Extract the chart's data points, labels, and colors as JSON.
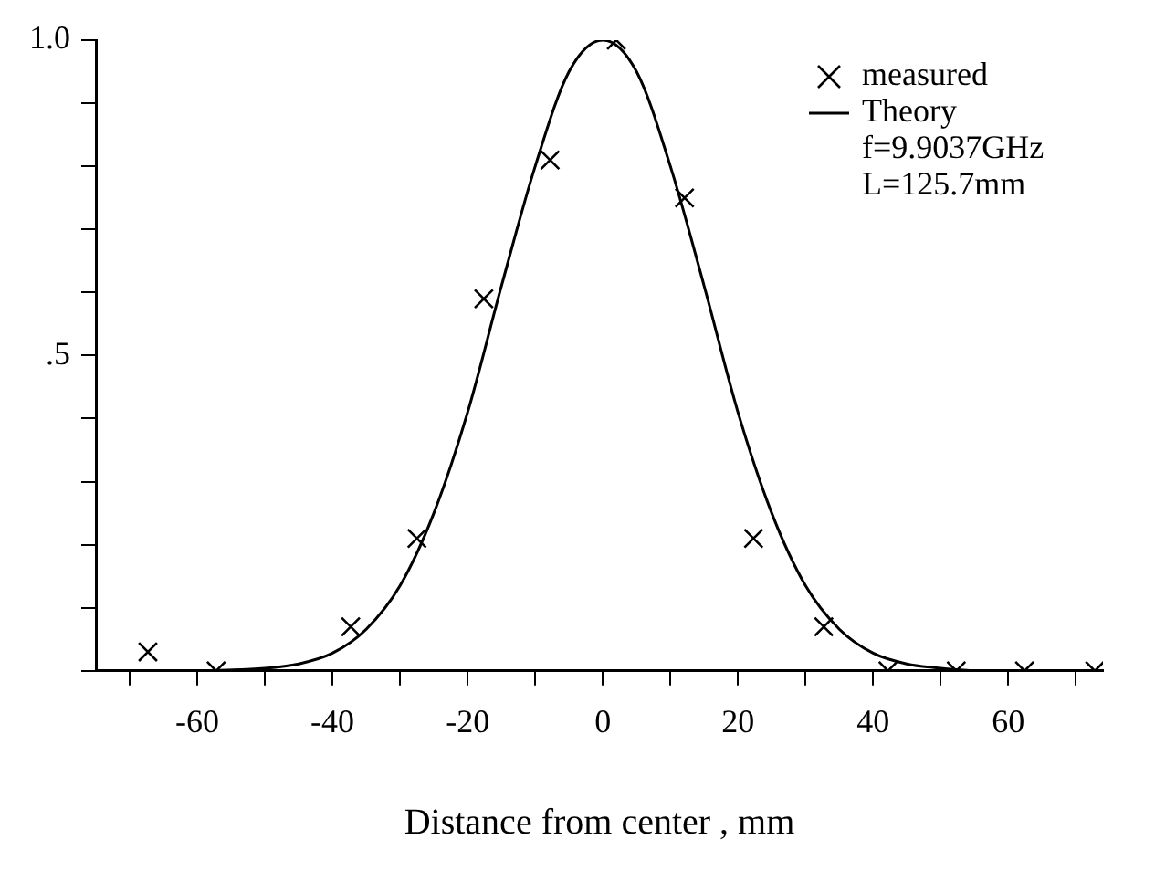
{
  "chart_data": {
    "type": "scatter",
    "xlabel": "Distance from center , mm",
    "legend": "top right",
    "grid": false,
    "xlim": [
      -75,
      74
    ],
    "ylim": [
      0,
      1.0
    ],
    "xticks": [
      {
        "value": -70,
        "label": null
      },
      -60,
      {
        "value": -50,
        "label": null
      },
      -40,
      {
        "value": -30,
        "label": null
      },
      -20,
      {
        "value": -10,
        "label": null
      },
      0,
      {
        "value": 10,
        "label": null
      },
      20,
      {
        "value": 30,
        "label": null
      },
      40,
      {
        "value": 50,
        "label": null
      },
      60,
      {
        "value": 70,
        "label": null
      }
    ],
    "yticks": [
      {
        "value": 0,
        "label": null
      },
      {
        "value": 0.1,
        "label": null
      },
      {
        "value": 0.2,
        "label": null
      },
      {
        "value": 0.3,
        "label": null
      },
      {
        "value": 0.4,
        "label": null
      },
      {
        "value": 0.5,
        "label": ".5"
      },
      {
        "value": 0.6,
        "label": null
      },
      {
        "value": 0.7,
        "label": null
      },
      {
        "value": 0.8,
        "label": null
      },
      {
        "value": 0.9,
        "label": null
      },
      {
        "value": 1.0,
        "label": "1.0"
      }
    ],
    "annotations": [
      "f=9.9037GHz",
      "L=125.7mm"
    ],
    "series": [
      {
        "name": "measured",
        "marker": "cross",
        "color": "#000000",
        "x": [
          -67.3,
          -57.2,
          -37.3,
          -27.5,
          -17.6,
          -7.8,
          2.0,
          12.1,
          22.3,
          32.7,
          42.2,
          52.3,
          62.4,
          72.8
        ],
        "values": [
          0.03,
          0,
          0.07,
          0.21,
          0.59,
          0.81,
          1.0,
          0.75,
          0.21,
          0.07,
          0,
          0,
          0,
          0
        ]
      },
      {
        "name": "Theory",
        "type": "line",
        "marker": "none",
        "line_style": "solid",
        "color": "#000000",
        "x": [
          -60,
          -50,
          -45,
          -40,
          -35,
          -30,
          -25,
          -20,
          -15,
          -10,
          -5,
          0,
          5,
          10,
          15,
          20,
          25,
          30,
          35,
          40,
          45,
          50,
          55
        ],
        "values": [
          0,
          0.004,
          0.011,
          0.028,
          0.066,
          0.135,
          0.25,
          0.41,
          0.61,
          0.8,
          0.95,
          1.0,
          0.95,
          0.8,
          0.61,
          0.41,
          0.25,
          0.135,
          0.066,
          0.028,
          0.011,
          0.004,
          0
        ]
      }
    ]
  }
}
